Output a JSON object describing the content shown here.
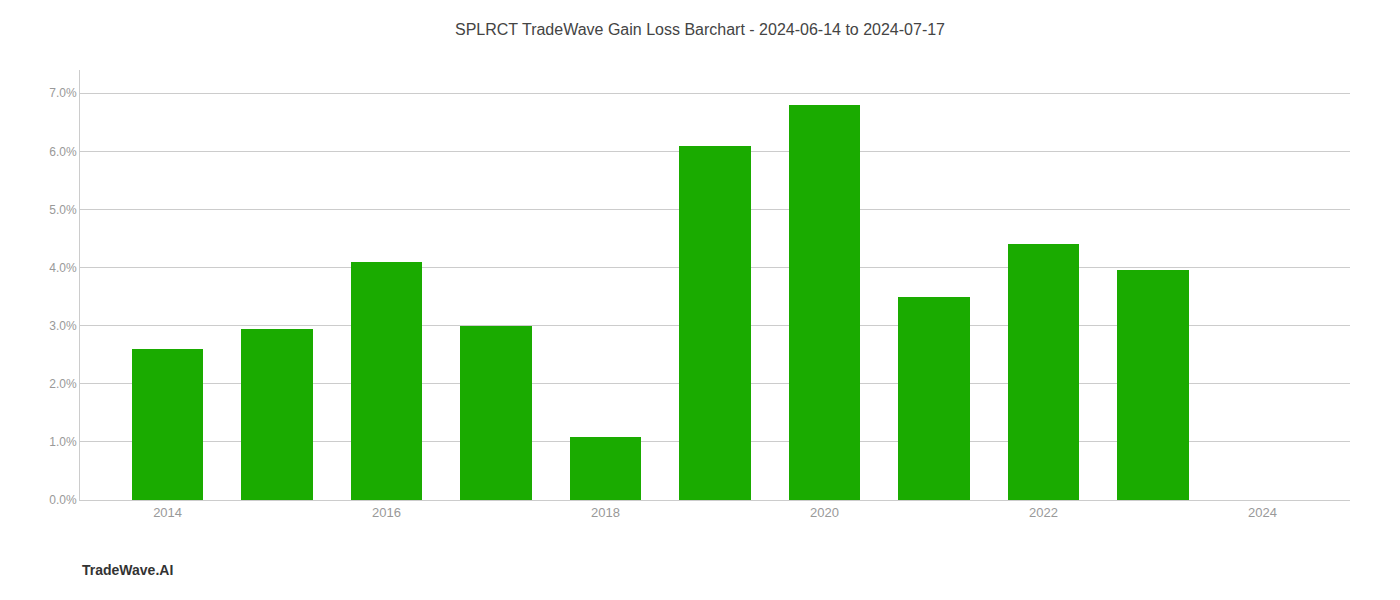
{
  "chart_data": {
    "type": "bar",
    "title": "SPLRCT TradeWave Gain Loss Barchart - 2024-06-14 to 2024-07-17",
    "annotations": [
      "TradeWave.AI"
    ],
    "x": [
      2014,
      2015,
      2016,
      2017,
      2018,
      2019,
      2020,
      2021,
      2022,
      2023
    ],
    "values": [
      0.026,
      0.0295,
      0.041,
      0.03,
      0.0108,
      0.061,
      0.068,
      0.035,
      0.044,
      0.0395
    ],
    "color": "#1aab00",
    "xlim": [
      2013.2,
      2024.8
    ],
    "xticks": [
      2014,
      2016,
      2018,
      2020,
      2022,
      2024
    ],
    "ylim": [
      0,
      0.074
    ],
    "yticks": [
      {
        "value": 0,
        "label": "0.0%"
      },
      {
        "value": 0.01,
        "label": "1.0%"
      },
      {
        "value": 0.02,
        "label": "2.0%"
      },
      {
        "value": 0.03,
        "label": "3.0%"
      },
      {
        "value": 0.04,
        "label": "4.0%"
      },
      {
        "value": 0.05,
        "label": "5.0%"
      },
      {
        "value": 0.06,
        "label": "6.0%"
      },
      {
        "value": 0.07,
        "label": "7.0%"
      }
    ],
    "grid": true
  }
}
